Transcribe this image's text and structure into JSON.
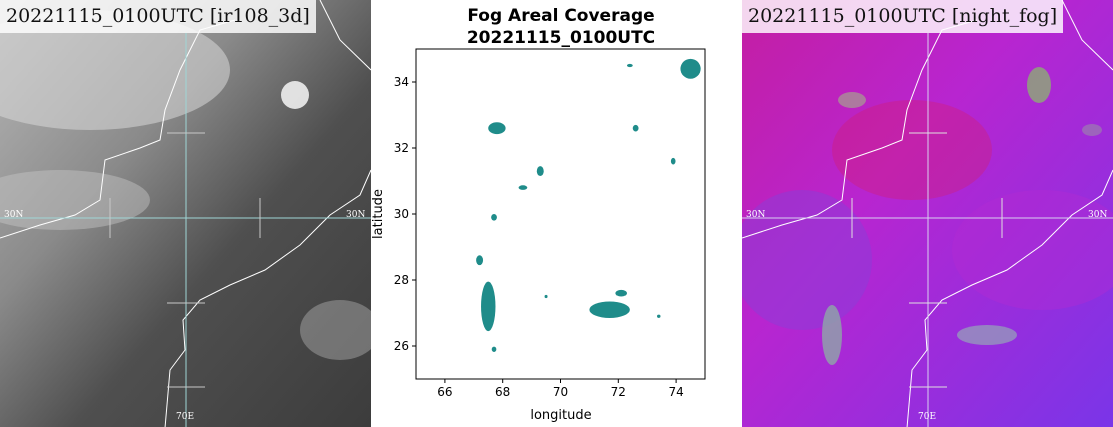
{
  "left_panel": {
    "title": "20221115_0100UTC [ir108_3d]",
    "lat_label_left": "30N",
    "lat_label_right": "30N",
    "lon_label": "70E"
  },
  "right_panel": {
    "title": "20221115_0100UTC [night_fog]",
    "lat_label_left": "30N",
    "lat_label_right": "30N",
    "lon_label": "70E"
  },
  "colors": {
    "fog": "#1f8c8a",
    "night_fog_base": "#c021c8",
    "ir_base": "#5a5a5a"
  },
  "chart_data": {
    "type": "scatter",
    "title": "Fog Areal Coverage",
    "subtitle": "20221115_0100UTC",
    "xlabel": "longitude",
    "ylabel": "latitude",
    "xlim": [
      65,
      75
    ],
    "ylim": [
      25,
      35
    ],
    "xticks": [
      66,
      68,
      70,
      72,
      74
    ],
    "yticks": [
      26,
      28,
      30,
      32,
      34
    ],
    "grid": false,
    "regions": [
      {
        "lon": 72.4,
        "lat": 34.5,
        "rx": 0.1,
        "ry": 0.05
      },
      {
        "lon": 74.5,
        "lat": 34.4,
        "rx": 0.35,
        "ry": 0.3
      },
      {
        "lon": 72.6,
        "lat": 32.6,
        "rx": 0.1,
        "ry": 0.1
      },
      {
        "lon": 67.8,
        "lat": 32.6,
        "rx": 0.3,
        "ry": 0.18
      },
      {
        "lon": 73.9,
        "lat": 31.6,
        "rx": 0.08,
        "ry": 0.1
      },
      {
        "lon": 69.3,
        "lat": 31.3,
        "rx": 0.12,
        "ry": 0.15
      },
      {
        "lon": 68.7,
        "lat": 30.8,
        "rx": 0.15,
        "ry": 0.07
      },
      {
        "lon": 67.7,
        "lat": 29.9,
        "rx": 0.1,
        "ry": 0.1
      },
      {
        "lon": 67.2,
        "lat": 28.6,
        "rx": 0.12,
        "ry": 0.15
      },
      {
        "lon": 67.5,
        "lat": 27.2,
        "rx": 0.25,
        "ry": 0.75
      },
      {
        "lon": 71.7,
        "lat": 27.1,
        "rx": 0.7,
        "ry": 0.25
      },
      {
        "lon": 72.1,
        "lat": 27.6,
        "rx": 0.2,
        "ry": 0.1
      },
      {
        "lon": 73.4,
        "lat": 26.9,
        "rx": 0.06,
        "ry": 0.05
      },
      {
        "lon": 67.7,
        "lat": 25.9,
        "rx": 0.08,
        "ry": 0.08
      },
      {
        "lon": 69.5,
        "lat": 27.5,
        "rx": 0.05,
        "ry": 0.05
      }
    ]
  }
}
